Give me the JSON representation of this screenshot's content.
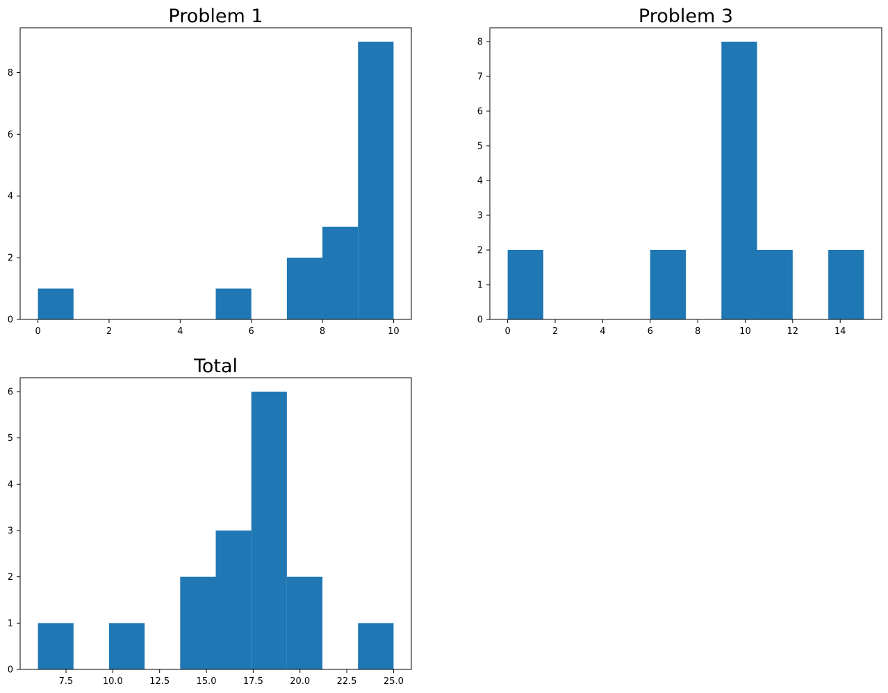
{
  "colors": {
    "bar": "#1f77b4",
    "axes": "#000000",
    "background": "#ffffff"
  },
  "chart_data": [
    {
      "type": "bar",
      "title": "Problem 1",
      "xlabel": "",
      "ylabel": "",
      "bins": [
        [
          0,
          1
        ],
        [
          1,
          2
        ],
        [
          2,
          3
        ],
        [
          3,
          4
        ],
        [
          4,
          5
        ],
        [
          5,
          6
        ],
        [
          6,
          7
        ],
        [
          7,
          8
        ],
        [
          8,
          9
        ],
        [
          9,
          10
        ]
      ],
      "values": [
        1,
        0,
        0,
        0,
        0,
        1,
        0,
        2,
        3,
        9
      ],
      "xlim": [
        -0.5,
        10.5
      ],
      "ylim": [
        0,
        9.45
      ],
      "xticks": [
        0,
        2,
        4,
        6,
        8,
        10
      ],
      "xtick_labels": [
        "0",
        "2",
        "4",
        "6",
        "8",
        "10"
      ],
      "yticks": [
        0,
        2,
        4,
        6,
        8
      ],
      "ytick_labels": [
        "0",
        "2",
        "4",
        "6",
        "8"
      ],
      "grid": false,
      "legend": "none"
    },
    {
      "type": "bar",
      "title": "Problem 3",
      "xlabel": "",
      "ylabel": "",
      "bins": [
        [
          0,
          1.5
        ],
        [
          1.5,
          3
        ],
        [
          3,
          4.5
        ],
        [
          4.5,
          6
        ],
        [
          6,
          7.5
        ],
        [
          7.5,
          9
        ],
        [
          9,
          10.5
        ],
        [
          10.5,
          12
        ],
        [
          12,
          13.5
        ],
        [
          13.5,
          15
        ]
      ],
      "values": [
        2,
        0,
        0,
        0,
        2,
        0,
        8,
        2,
        0,
        2
      ],
      "xlim": [
        -0.75,
        15.75
      ],
      "ylim": [
        0,
        8.4
      ],
      "xticks": [
        0,
        2,
        4,
        6,
        8,
        10,
        12,
        14
      ],
      "xtick_labels": [
        "0",
        "2",
        "4",
        "6",
        "8",
        "10",
        "12",
        "14"
      ],
      "yticks": [
        0,
        1,
        2,
        3,
        4,
        5,
        6,
        7,
        8
      ],
      "ytick_labels": [
        "0",
        "1",
        "2",
        "3",
        "4",
        "5",
        "6",
        "7",
        "8"
      ],
      "grid": false,
      "legend": "none"
    },
    {
      "type": "bar",
      "title": "Total",
      "xlabel": "",
      "ylabel": "",
      "bins": [
        [
          6,
          7.9
        ],
        [
          7.9,
          9.8
        ],
        [
          9.8,
          11.7
        ],
        [
          11.7,
          13.6
        ],
        [
          13.6,
          15.5
        ],
        [
          15.5,
          17.4
        ],
        [
          17.4,
          19.3
        ],
        [
          19.3,
          21.2
        ],
        [
          21.2,
          23.1
        ],
        [
          23.1,
          25
        ]
      ],
      "values": [
        1,
        0,
        1,
        0,
        2,
        3,
        6,
        2,
        0,
        1
      ],
      "xlim": [
        5.05,
        25.95
      ],
      "ylim": [
        0,
        6.3
      ],
      "xticks": [
        7.5,
        10,
        12.5,
        15,
        17.5,
        20,
        22.5,
        25
      ],
      "xtick_labels": [
        "7.5",
        "10.0",
        "12.5",
        "15.0",
        "17.5",
        "20.0",
        "22.5",
        "25.0"
      ],
      "yticks": [
        0,
        1,
        2,
        3,
        4,
        5,
        6
      ],
      "ytick_labels": [
        "0",
        "1",
        "2",
        "3",
        "4",
        "5",
        "6"
      ],
      "grid": false,
      "legend": "none"
    }
  ]
}
